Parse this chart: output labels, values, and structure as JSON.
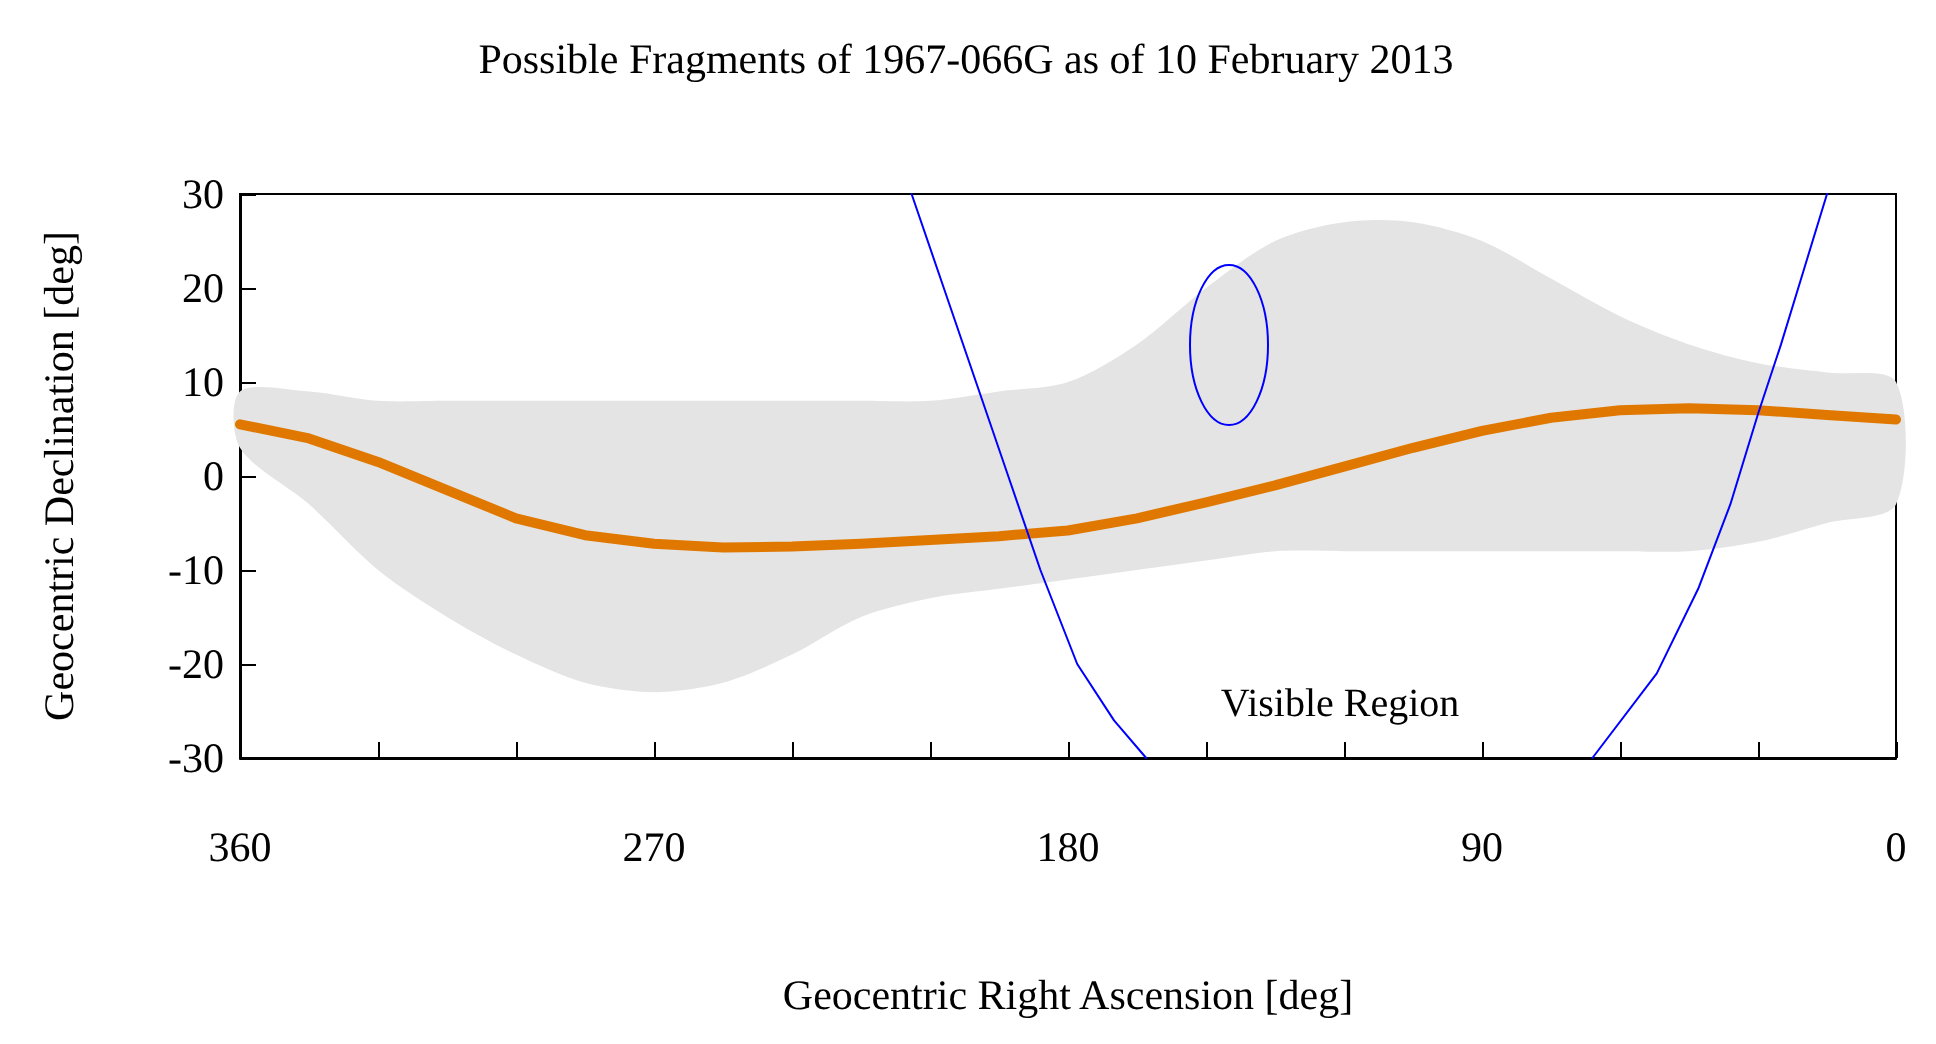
{
  "chart_data": {
    "type": "line",
    "title": "Possible Fragments of 1967-066G as of 10 February 2013",
    "xlabel": "Geocentric Right Ascension [deg]",
    "ylabel": "Geocentric Declination [deg]",
    "x": [
      360,
      345,
      330,
      315,
      300,
      285,
      270,
      255,
      240,
      225,
      210,
      195,
      180,
      165,
      150,
      135,
      120,
      105,
      90,
      75,
      60,
      45,
      30,
      15,
      0
    ],
    "series": [
      {
        "color": "#e07800",
        "values": [
          5.5,
          4,
          1.5,
          -1.5,
          -4.5,
          -6.3,
          -7.2,
          -7.6,
          -7.5,
          -7.2,
          -6.8,
          -6.4,
          -5.8,
          -4.5,
          -2.8,
          -1,
          1,
          3,
          4.8,
          6.2,
          7,
          7.2,
          7,
          6.5,
          6
        ],
        "lower": [
          3,
          -3,
          -10,
          -15,
          -19,
          -22,
          -23,
          -22,
          -19,
          -15,
          -13,
          -12,
          -11,
          -10,
          -9,
          -8,
          -8,
          -8,
          -8,
          -8,
          -8,
          -8,
          -7,
          -5,
          -3
        ],
        "upper": [
          9,
          9,
          8,
          8,
          8,
          8,
          8,
          8,
          8,
          8,
          8,
          9,
          10,
          14,
          20,
          25,
          27,
          27,
          25,
          21,
          17,
          14,
          12,
          11,
          10
        ]
      },
      {
        "color": "#0000ff",
        "x": [
          214,
          207,
          200,
          193,
          186,
          178,
          170,
          163
        ],
        "values": [
          30,
          20,
          10,
          0,
          -10,
          -20,
          -26,
          -30
        ]
      },
      {
        "color": "#0000ff",
        "x": [
          15,
          20,
          25,
          30,
          36,
          43,
          52,
          66
        ],
        "values": [
          30,
          22,
          14,
          6.6,
          -3,
          -12,
          -21,
          -30
        ]
      }
    ],
    "annotations": [
      "Visible Region"
    ],
    "xlim": [
      360,
      0
    ],
    "ylim": [
      -30,
      30
    ],
    "xticks": [
      360,
      {
        "value": 330,
        "label": null
      },
      {
        "value": 300,
        "label": null
      },
      270,
      {
        "value": 240,
        "label": null
      },
      {
        "value": 210,
        "label": null
      },
      180,
      {
        "value": 150,
        "label": null
      },
      {
        "value": 120,
        "label": null
      },
      90,
      {
        "value": 60,
        "label": null
      },
      {
        "value": 30,
        "label": null
      },
      0
    ],
    "yticks": [
      -30,
      -20,
      -10,
      0,
      10,
      20,
      30
    ],
    "grid": false,
    "marker": "none",
    "line_style": "solid"
  }
}
